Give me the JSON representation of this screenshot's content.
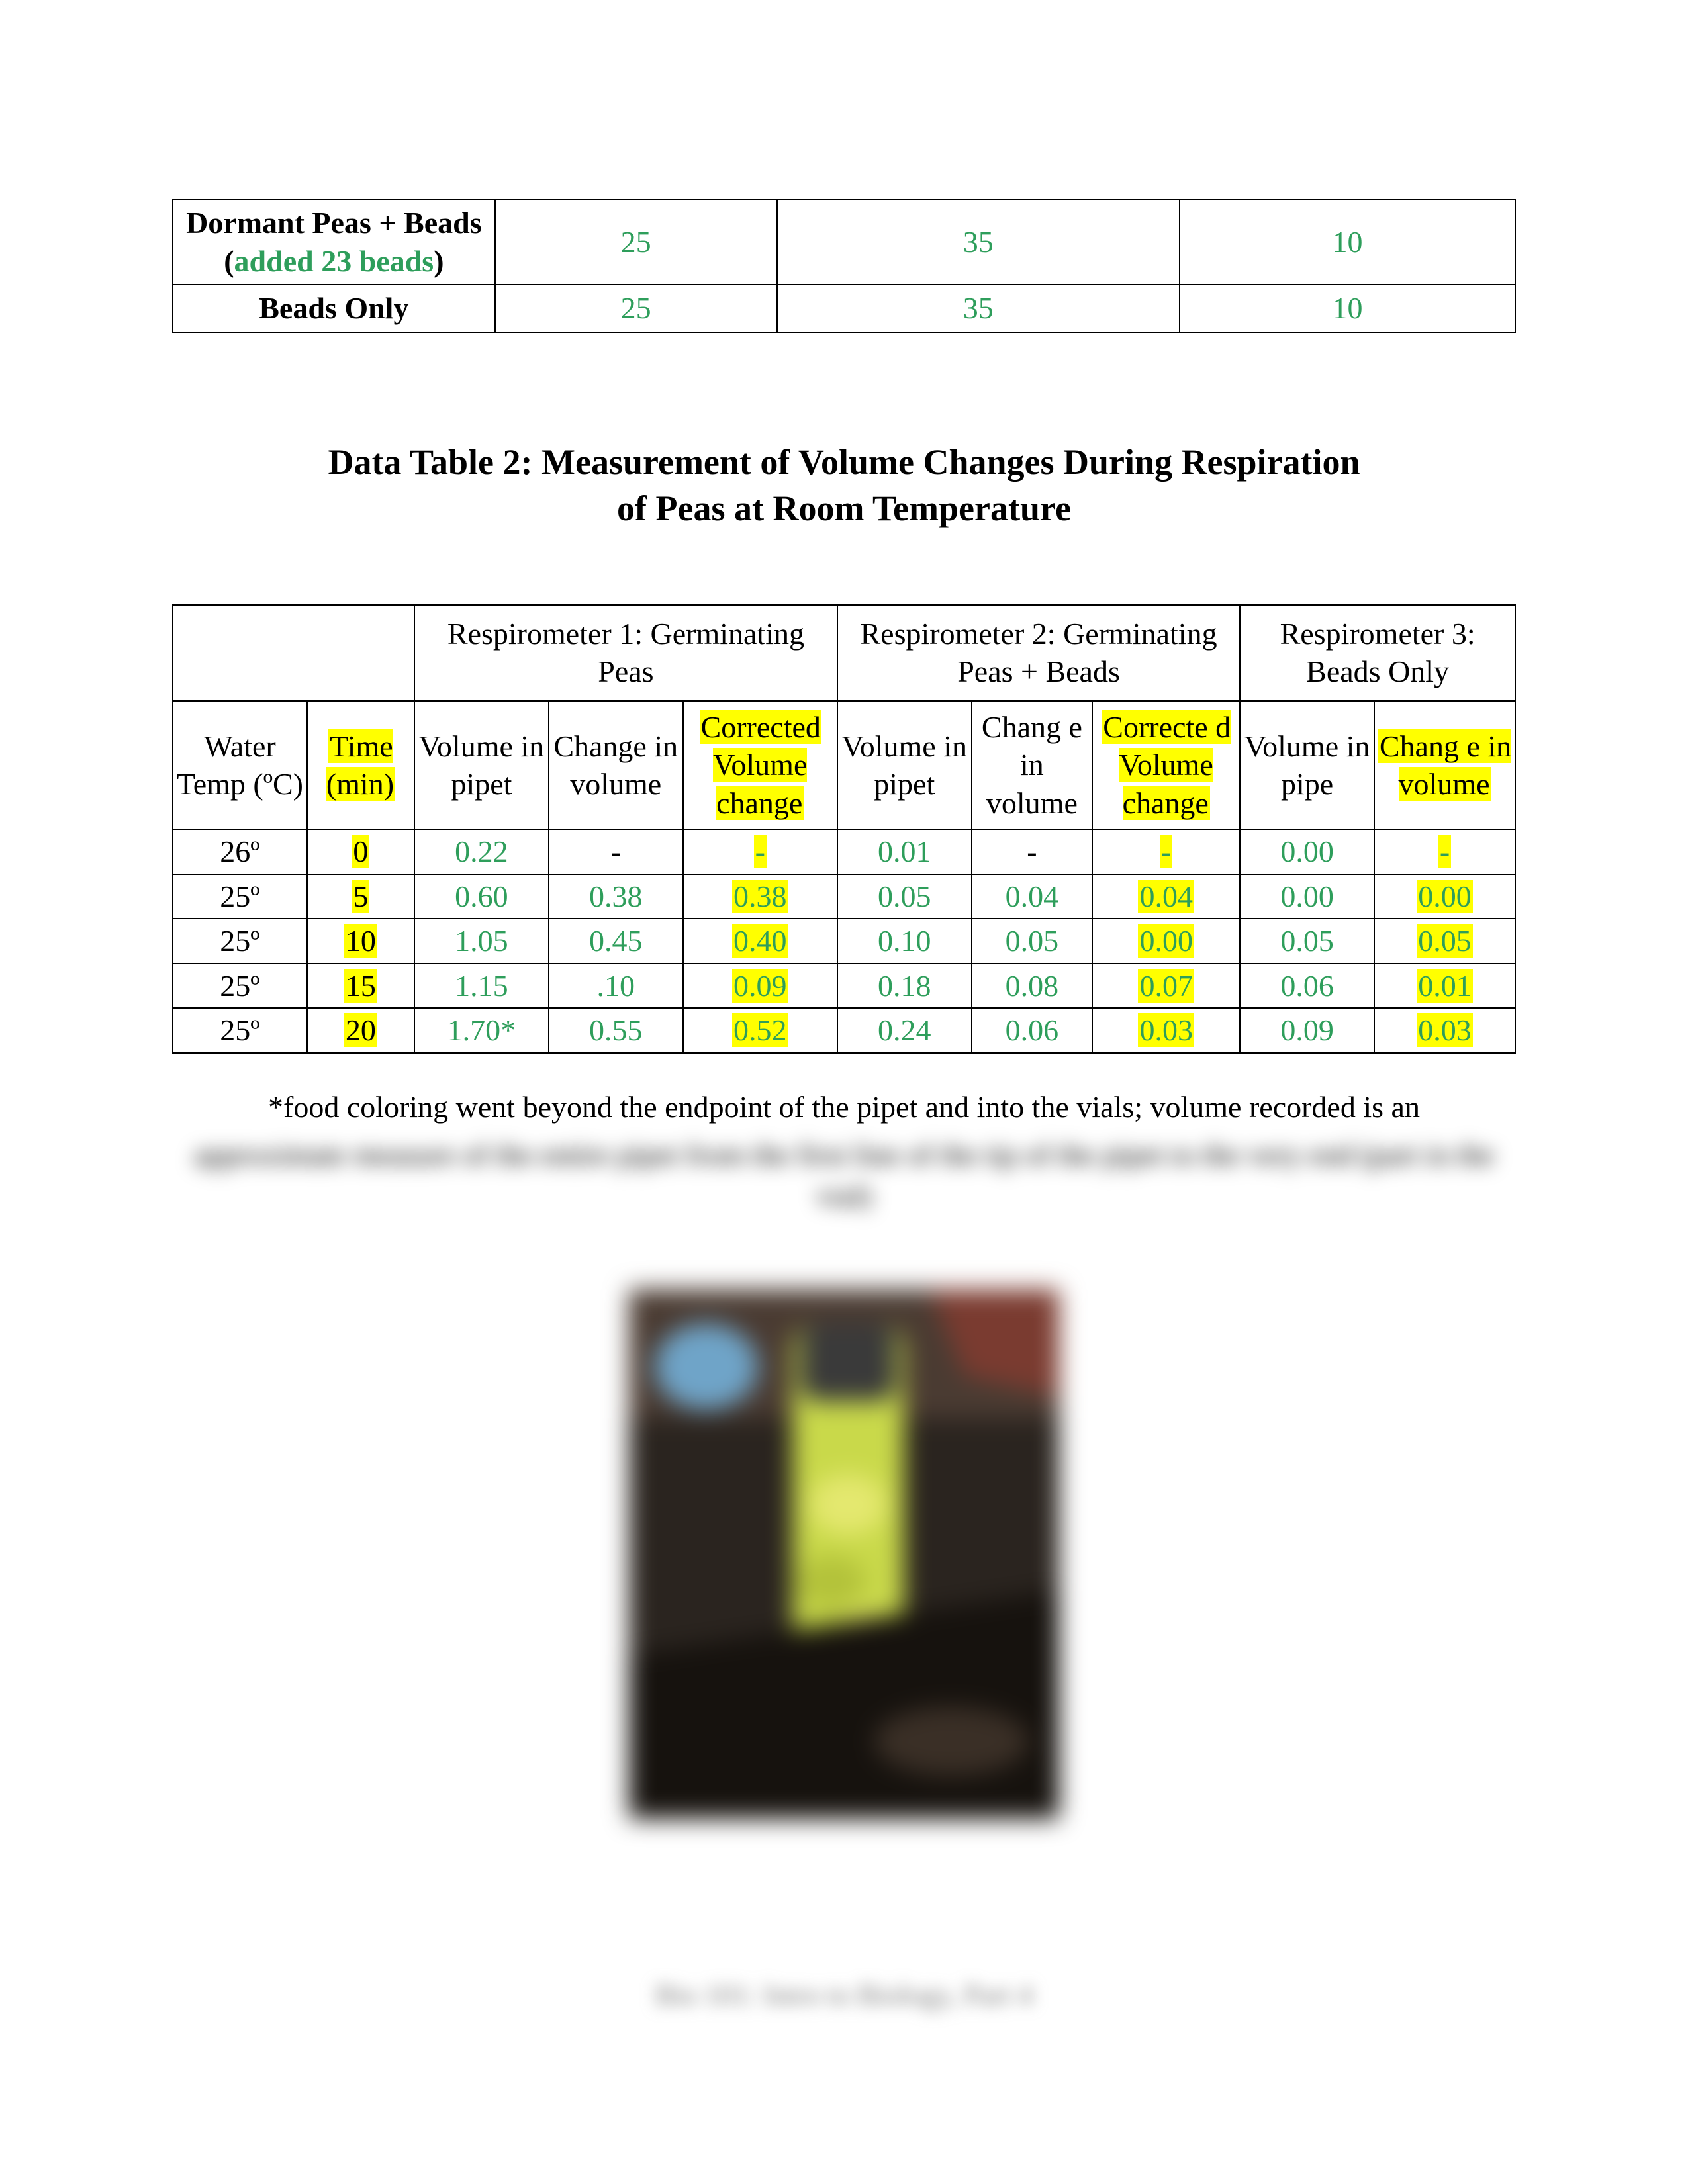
{
  "colors": {
    "green": "#2e9e5b",
    "highlight": "#ffff00",
    "border": "#000000",
    "text": "#000000",
    "bg": "#ffffff"
  },
  "table1": {
    "rows": [
      {
        "label_pre": "Dormant Peas + Beads (",
        "label_green": "added 23 beads",
        "label_post": ")",
        "c1": "25",
        "c2": "35",
        "c3": "10"
      },
      {
        "label_pre": "Beads Only",
        "label_green": "",
        "label_post": "",
        "c1": "25",
        "c2": "35",
        "c3": "10"
      }
    ]
  },
  "title": "Data Table 2: Measurement of Volume Changes During Respiration of Peas at Room Temperature",
  "table2": {
    "headers": {
      "r1": "Respirometer 1: Germinating Peas",
      "r2": "Respirometer 2: Germinating Peas + Beads",
      "r3": "Respirometer 3: Beads Only"
    },
    "sub": {
      "temp": "Water Temp (ºC)",
      "time": "Time (min)",
      "vol": "Volume in pipet",
      "chg": "Change in volume",
      "chg2": "Chang e in volume",
      "corr": "Corrected Volume change",
      "corr2": "Correcte d Volume change",
      "vol3": "Volume in pipe",
      "chg3": "Chang e in volume"
    },
    "rows": [
      {
        "temp": "26º",
        "time": "0",
        "r1v": "0.22",
        "r1c": "-",
        "r1cc": "-",
        "r2v": "0.01",
        "r2c": "-",
        "r2cc": "-",
        "r3v": "0.00",
        "r3c": "-"
      },
      {
        "temp": "25º",
        "time": "5",
        "r1v": "0.60",
        "r1c": "0.38",
        "r1cc": "0.38",
        "r2v": "0.05",
        "r2c": "0.04",
        "r2cc": "0.04",
        "r3v": "0.00",
        "r3c": "0.00"
      },
      {
        "temp": "25º",
        "time": "10",
        "r1v": "1.05",
        "r1c": "0.45",
        "r1cc": "0.40",
        "r2v": "0.10",
        "r2c": "0.05",
        "r2cc": "0.00",
        "r3v": "0.05",
        "r3c": "0.05"
      },
      {
        "temp": "25º",
        "time": "15",
        "r1v": "1.15",
        "r1c": ".10",
        "r1cc": "0.09",
        "r2v": "0.18",
        "r2c": "0.08",
        "r2cc": "0.07",
        "r3v": "0.06",
        "r3c": "0.01"
      },
      {
        "temp": "25º",
        "time": "20",
        "r1v": "1.70*",
        "r1c": "0.55",
        "r1cc": "0.52",
        "r2v": "0.24",
        "r2c": "0.06",
        "r2cc": "0.03",
        "r3v": "0.09",
        "r3c": "0.03"
      }
    ]
  },
  "footnote_visible": "*food coloring went beyond the endpoint of the pipet and into the vials; volume recorded is an",
  "footnote_blurred": "approximate measure of the entire pipet from the first line of the tip of the pipet to the very end (part in the vial)",
  "footer": "Bio 101: Intro to Biology, Part 4"
}
